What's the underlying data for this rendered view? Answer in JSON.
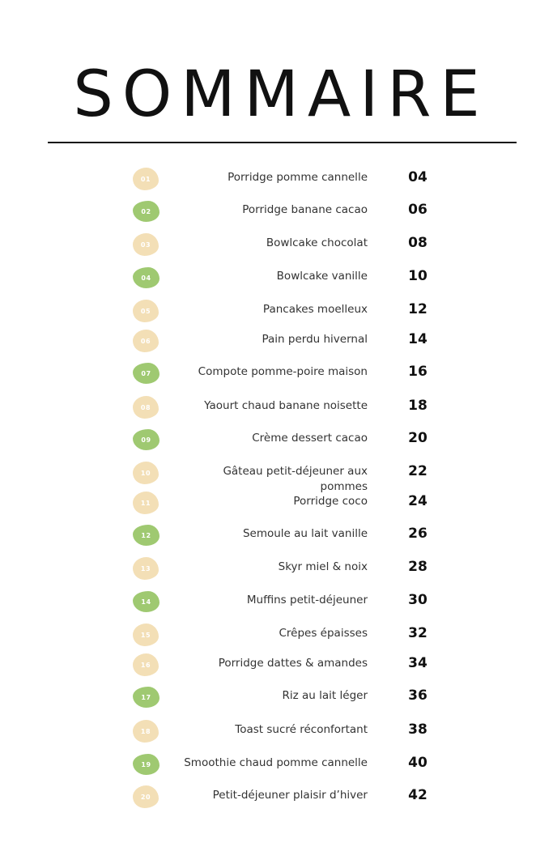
{
  "title": "SOMMAIRE",
  "colors": {
    "cream_badge": "#f3dfb6",
    "green_badge": "#9fc971"
  },
  "entries": [
    {
      "num": "01",
      "label": "Porridge pomme cannelle",
      "page": "04",
      "badge_color": "cream"
    },
    {
      "num": "02",
      "label": "Porridge banane cacao",
      "page": "06",
      "badge_color": "green"
    },
    {
      "num": "03",
      "label": "Bowlcake chocolat",
      "page": "08",
      "badge_color": "cream"
    },
    {
      "num": "04",
      "label": "Bowlcake vanille",
      "page": "10",
      "badge_color": "green"
    },
    {
      "num": "05",
      "label": "Pancakes moelleux",
      "page": "12",
      "badge_color": "cream"
    },
    {
      "num": "06",
      "label": "Pain perdu hivernal",
      "page": "14",
      "badge_color": "cream"
    },
    {
      "num": "07",
      "label": "Compote pomme-poire maison",
      "page": "16",
      "badge_color": "green"
    },
    {
      "num": "08",
      "label": "Yaourt chaud banane noisette",
      "page": "18",
      "badge_color": "cream"
    },
    {
      "num": "09",
      "label": "Crème dessert cacao",
      "page": "20",
      "badge_color": "green"
    },
    {
      "num": "10",
      "label": "Gâteau petit-déjeuner aux pommes",
      "page": "22",
      "badge_color": "cream"
    },
    {
      "num": "11",
      "label": "Porridge coco",
      "page": "24",
      "badge_color": "cream"
    },
    {
      "num": "12",
      "label": "Semoule au lait vanille",
      "page": "26",
      "badge_color": "green"
    },
    {
      "num": "13",
      "label": "Skyr miel & noix",
      "page": "28",
      "badge_color": "cream"
    },
    {
      "num": "14",
      "label": "Muffins petit-déjeuner",
      "page": "30",
      "badge_color": "green"
    },
    {
      "num": "15",
      "label": "Crêpes épaisses",
      "page": "32",
      "badge_color": "cream"
    },
    {
      "num": "16",
      "label": "Porridge dattes & amandes",
      "page": "34",
      "badge_color": "cream"
    },
    {
      "num": "17",
      "label": "Riz au lait léger",
      "page": "36",
      "badge_color": "green"
    },
    {
      "num": "18",
      "label": "Toast sucré réconfortant",
      "page": "38",
      "badge_color": "cream"
    },
    {
      "num": "19",
      "label": "Smoothie chaud pomme cannelle",
      "page": "40",
      "badge_color": "green"
    },
    {
      "num": "20",
      "label": "Petit-déjeuner plaisir d’hiver",
      "page": "42",
      "badge_color": "cream"
    }
  ]
}
